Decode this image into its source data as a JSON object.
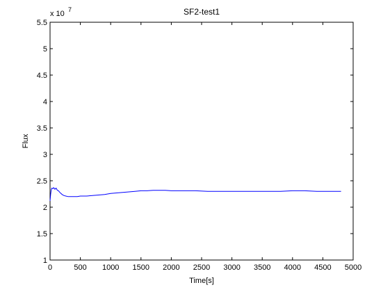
{
  "chart_data": {
    "type": "line",
    "title": "SF2-test1",
    "xlabel": "Time[s]",
    "ylabel": "Flux",
    "multiplier_base": "x 10",
    "multiplier_exponent": "7",
    "xlim": [
      0,
      5000
    ],
    "ylim": [
      1,
      5.5
    ],
    "xticks": [
      0,
      500,
      1000,
      1500,
      2000,
      2500,
      3000,
      3500,
      4000,
      4500,
      5000
    ],
    "xtick_labels": [
      "0",
      "500",
      "1000",
      "1500",
      "2000",
      "2500",
      "3000",
      "3500",
      "4000",
      "4500",
      "5000"
    ],
    "yticks": [
      1,
      1.5,
      2,
      2.5,
      3,
      3.5,
      4,
      4.5,
      5,
      5.5
    ],
    "ytick_labels": [
      "1",
      "1.5",
      "2",
      "2.5",
      "3",
      "3.5",
      "4",
      "4.5",
      "5",
      "5.5"
    ],
    "grid": false,
    "series": [
      {
        "color": "#0000ff",
        "x": [
          0,
          10,
          20,
          30,
          45,
          60,
          80,
          100,
          120,
          140,
          160,
          180,
          200,
          230,
          260,
          300,
          350,
          400,
          450,
          500,
          600,
          700,
          800,
          900,
          1000,
          1100,
          1200,
          1300,
          1400,
          1500,
          1600,
          1700,
          1800,
          1900,
          2000,
          2200,
          2400,
          2600,
          2800,
          3000,
          3200,
          3400,
          3600,
          3800,
          4000,
          4200,
          4400,
          4600,
          4800
        ],
        "y": [
          2.12,
          2.25,
          2.33,
          2.36,
          2.35,
          2.37,
          2.34,
          2.36,
          2.32,
          2.31,
          2.28,
          2.26,
          2.24,
          2.22,
          2.21,
          2.2,
          2.2,
          2.2,
          2.2,
          2.21,
          2.21,
          2.22,
          2.23,
          2.24,
          2.26,
          2.27,
          2.28,
          2.29,
          2.3,
          2.31,
          2.31,
          2.32,
          2.32,
          2.32,
          2.31,
          2.31,
          2.31,
          2.3,
          2.3,
          2.3,
          2.3,
          2.3,
          2.3,
          2.3,
          2.31,
          2.31,
          2.3,
          2.3,
          2.3
        ]
      }
    ]
  }
}
